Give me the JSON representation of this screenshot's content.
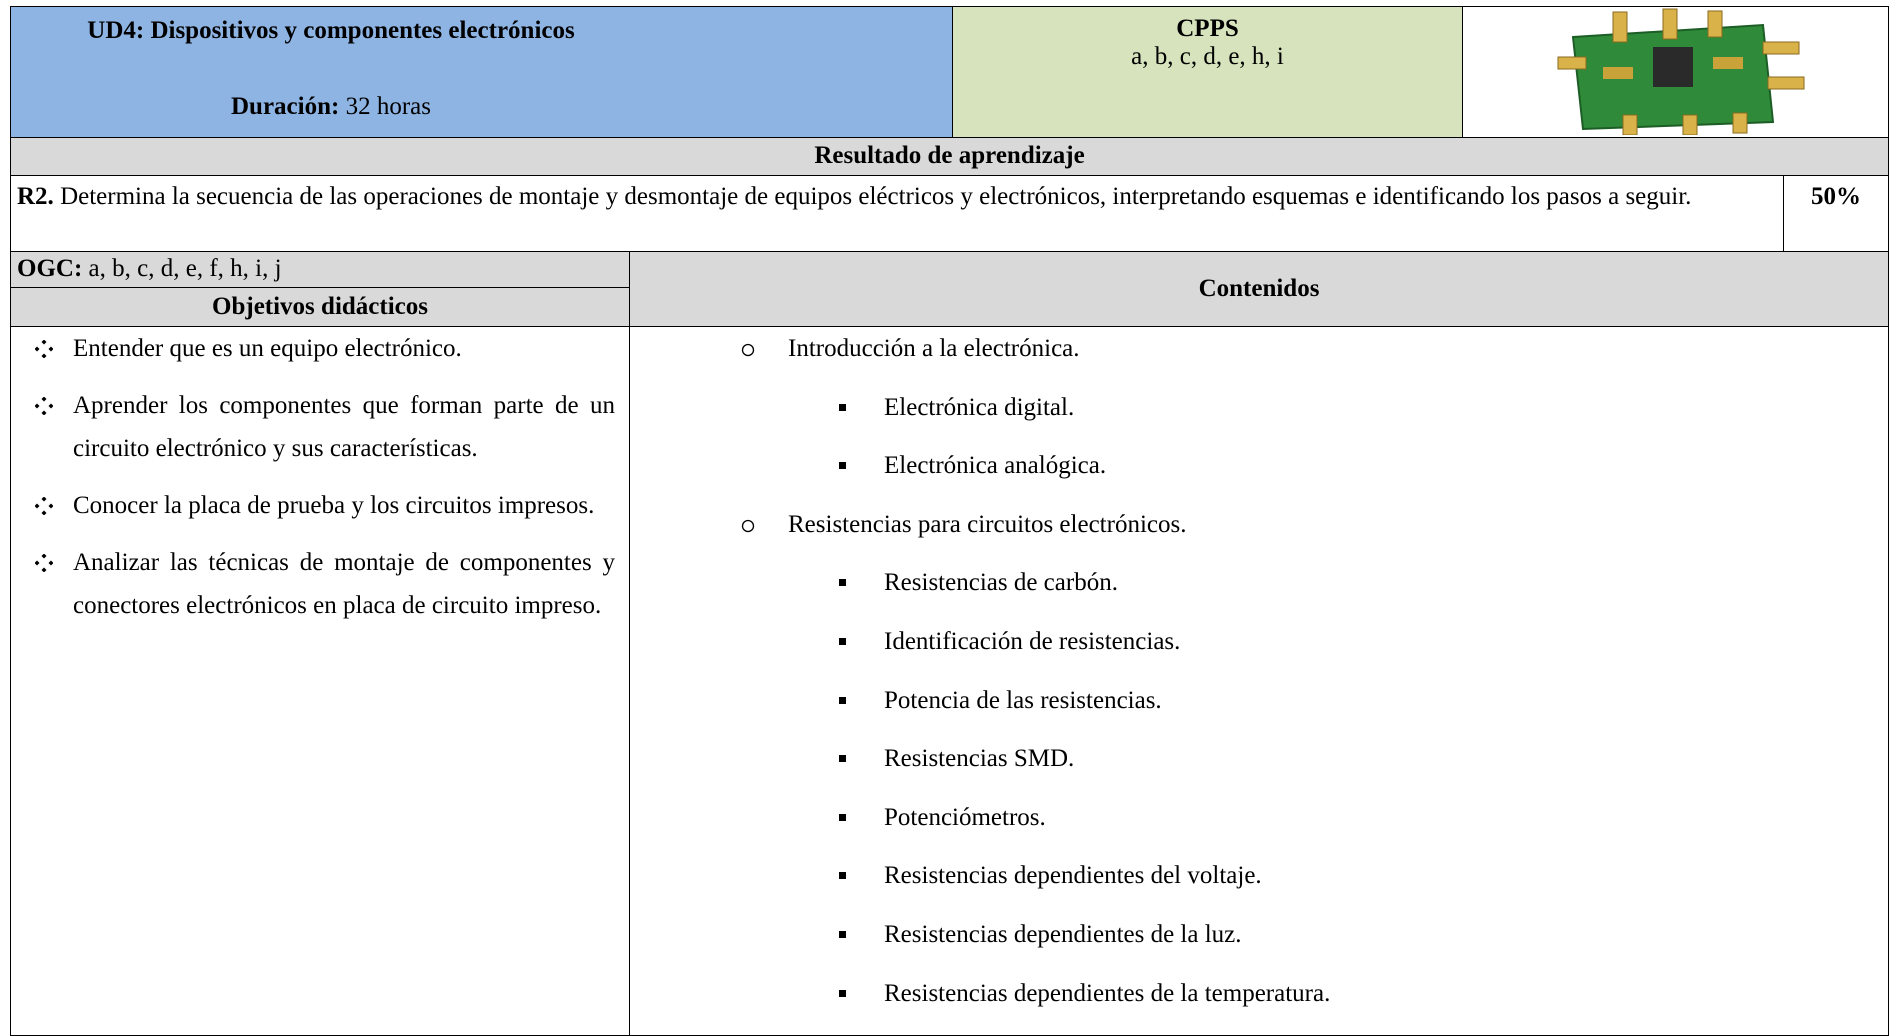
{
  "header": {
    "unit_title": "UD4: Dispositivos y componentes electrónicos",
    "duration_label": "Duración:",
    "duration_value": "32 horas",
    "cpps_label": "CPPS",
    "cpps_value": "a, b, c, d, e, h, i"
  },
  "result": {
    "heading": "Resultado de aprendizaje",
    "code": "R2.",
    "text": "Determina la secuencia de las operaciones de montaje y desmontaje de equipos eléctricos y electrónicos, interpretando esquemas e identificando los pasos a seguir.",
    "weight": "50%"
  },
  "ogc": {
    "label": "OGC:",
    "value": "a, b, c, d, e, f, h, i, j"
  },
  "objectives": {
    "heading": "Objetivos didácticos",
    "items": [
      "Entender que es un equipo electrónico.",
      "Aprender los componentes que forman parte de un circuito electrónico y sus características.",
      "Conocer la placa de prueba y los circuitos impresos.",
      "Analizar las técnicas de montaje de componentes y conectores electrónicos en placa de circuito impreso."
    ]
  },
  "contents": {
    "heading": "Contenidos",
    "items": [
      {
        "text": "Introducción a la electrónica.",
        "subitems": [
          "Electrónica digital.",
          "Electrónica analógica."
        ]
      },
      {
        "text": "Resistencias para circuitos electrónicos.",
        "subitems": [
          "Resistencias de carbón.",
          "Identificación de resistencias.",
          "Potencia de las resistencias.",
          "Resistencias SMD.",
          "Potenciómetros.",
          "Resistencias dependientes del voltaje.",
          "Resistencias dependientes de la luz.",
          "Resistencias dependientes de la temperatura."
        ]
      }
    ]
  }
}
